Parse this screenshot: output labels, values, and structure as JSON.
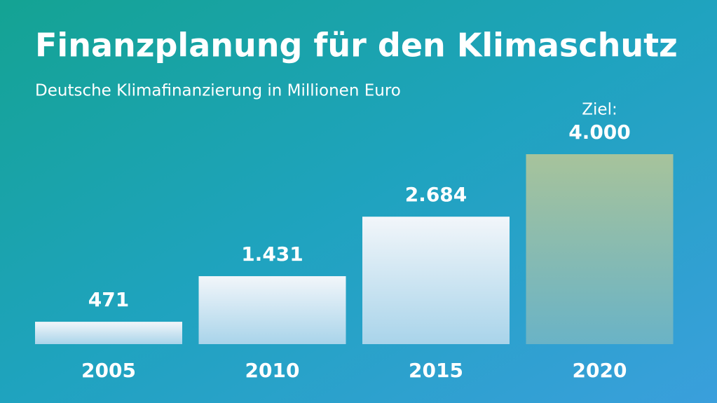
{
  "chart_data": {
    "type": "bar",
    "title": "Finanzplanung für den Klimaschutz",
    "subtitle": "Deutsche Klimafinanzierung in Millionen Euro",
    "categories": [
      "2005",
      "2010",
      "2015",
      "2020"
    ],
    "values": [
      471,
      1431,
      2684,
      4000
    ],
    "value_labels": [
      "471",
      "1.431",
      "2.684",
      "4.000"
    ],
    "annotation": "Ziel:"
  }
}
